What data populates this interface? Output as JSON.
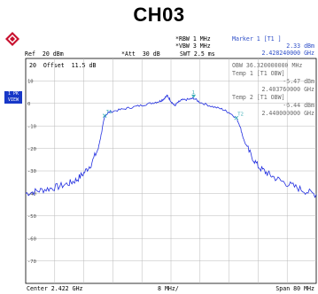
{
  "title": "CH03",
  "header": {
    "ref": "Ref  20 dBm",
    "att": "*Att  30 dB",
    "rbw": "*RBW 1 MHz",
    "vbw": "*VBW 3 MHz",
    "swt": "SWT 2.5 ms",
    "offset": "20  Offset  11.5 dB"
  },
  "marker_panel": {
    "marker_title": "Marker 1 [T1 ]",
    "marker_level": "2.33 dBm",
    "marker_freq": "2.428240000 GHz",
    "obw": "OBW 36.320000000 MHz",
    "temp1_label": "Temp 1 [T1 OBW]",
    "temp1_level": "-5.47 dBm",
    "temp1_freq": "2.403760000 GHz",
    "temp2_label": "Temp 2 [T1 OBW]",
    "temp2_level": "-6.44 dBm",
    "temp2_freq": "2.440000000 GHz"
  },
  "side_labels": [
    "1 PK",
    "VIEW"
  ],
  "colors": {
    "trace": "#2330e0",
    "grid": "#b8b8b8",
    "marker": "#40b0b8",
    "badge": "#1838c8"
  },
  "chart_data": {
    "type": "line",
    "title": "CH03",
    "xlabel": "",
    "ylabel": "",
    "x_unit": "MHz",
    "y_unit": "dBm",
    "xlim": [
      2382,
      2462
    ],
    "ylim": [
      -80,
      20
    ],
    "grid": true,
    "yticks": [
      10,
      0,
      -10,
      -20,
      -30,
      -40,
      -50,
      -60,
      -70
    ],
    "center_label": "Center 2.422 GHz",
    "span_div_label": "8 MHz/",
    "span_label": "Span 80 MHz",
    "series": [
      {
        "name": "1 PK",
        "x": [
          2382,
          2385,
          2388,
          2391,
          2394,
          2396,
          2398,
          2400,
          2402,
          2403,
          2403.8,
          2405,
          2408,
          2411,
          2414,
          2417,
          2419,
          2420,
          2421,
          2422,
          2423,
          2424,
          2425,
          2427,
          2428.24,
          2430,
          2433,
          2436,
          2438,
          2440,
          2441,
          2442,
          2444,
          2446,
          2448,
          2450,
          2453,
          2456,
          2459,
          2462
        ],
        "y": [
          -40,
          -39,
          -38,
          -37,
          -35.5,
          -34,
          -31,
          -27,
          -20,
          -12,
          -5.5,
          -3.8,
          -2.8,
          -1.8,
          -0.8,
          0.3,
          1,
          2,
          3.5,
          1,
          -1,
          0.5,
          1.5,
          1.8,
          2.3,
          0.5,
          -1.2,
          -2.5,
          -4,
          -6.4,
          -10,
          -16,
          -23,
          -28,
          -30.5,
          -32.5,
          -35,
          -37,
          -39,
          -40.5
        ]
      }
    ],
    "markers": [
      {
        "label": "1",
        "x": 2428.24,
        "y": 2.33
      },
      {
        "label": "T1",
        "x": 2403.76,
        "y": -5.47
      },
      {
        "label": "T2",
        "x": 2440.0,
        "y": -6.44
      }
    ]
  }
}
